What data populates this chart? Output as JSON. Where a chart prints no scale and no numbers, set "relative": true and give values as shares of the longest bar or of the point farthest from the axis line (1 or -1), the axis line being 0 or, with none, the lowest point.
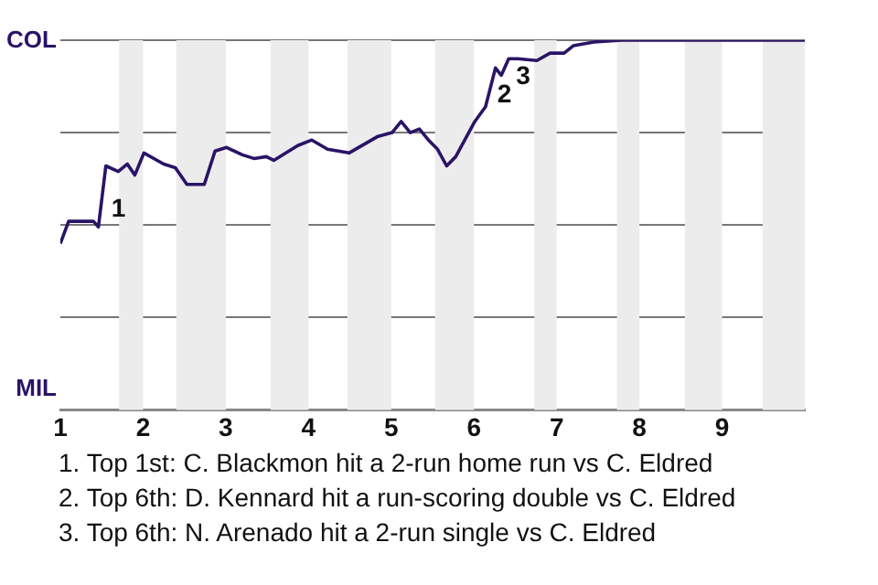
{
  "chart_data": {
    "type": "line",
    "relative": true,
    "x": [
      1,
      1.1,
      1.4,
      1.46,
      1.55,
      1.7,
      1.81,
      1.9,
      2.01,
      2.25,
      2.39,
      2.53,
      2.74,
      2.87,
      3.01,
      3.2,
      3.34,
      3.49,
      3.58,
      3.87,
      4.04,
      4.23,
      4.49,
      4.84,
      5.01,
      5.12,
      5.23,
      5.34,
      5.45,
      5.56,
      5.67,
      5.78,
      6.01,
      6.14,
      6.26,
      6.33,
      6.42,
      6.53,
      6.76,
      6.92,
      7.09,
      7.2,
      7.45,
      7.78,
      9.96,
      10
    ],
    "series": [
      {
        "color": "#2a1466",
        "values": [
          0.45,
          0.51,
          0.51,
          0.495,
          0.66,
          0.645,
          0.665,
          0.635,
          0.695,
          0.665,
          0.655,
          0.61,
          0.61,
          0.7,
          0.71,
          0.69,
          0.68,
          0.685,
          0.675,
          0.715,
          0.73,
          0.705,
          0.695,
          0.74,
          0.75,
          0.78,
          0.75,
          0.76,
          0.73,
          0.705,
          0.66,
          0.685,
          0.78,
          0.82,
          0.925,
          0.905,
          0.95,
          0.95,
          0.945,
          0.965,
          0.965,
          0.985,
          0.995,
          1,
          1,
          1
        ]
      }
    ],
    "xlim": [
      1,
      10
    ],
    "xticks": [
      1,
      2,
      3,
      4,
      5,
      6,
      7,
      8,
      9
    ],
    "grid": "y",
    "legend": false,
    "marker": "none",
    "line_style": "solid",
    "bands": [
      {
        "axis": "x",
        "from": 1.71,
        "to": 2,
        "color": "#ececec"
      },
      {
        "axis": "x",
        "from": 2.4,
        "to": 3,
        "color": "#ececec"
      },
      {
        "axis": "x",
        "from": 3.54,
        "to": 4,
        "color": "#ececec"
      },
      {
        "axis": "x",
        "from": 4.47,
        "to": 5,
        "color": "#ececec"
      },
      {
        "axis": "x",
        "from": 5.53,
        "to": 6,
        "color": "#ececec"
      },
      {
        "axis": "x",
        "from": 6.73,
        "to": 7,
        "color": "#ececec"
      },
      {
        "axis": "x",
        "from": 7.73,
        "to": 8,
        "color": "#ececec"
      },
      {
        "axis": "x",
        "from": 8.55,
        "to": 9,
        "color": "#ececec"
      },
      {
        "axis": "x",
        "from": 9.49,
        "to": 10,
        "color": "#ececec"
      }
    ],
    "annotations": [
      {
        "text": "1",
        "x": 1.55,
        "y": 0.66
      },
      {
        "text": "2",
        "x": 6.26,
        "y": 0.925
      },
      {
        "text": "3",
        "x": 6.42,
        "y": 0.95
      },
      "COL",
      "MIL",
      "1. Top 1st: C. Blackmon hit a 2-run home run vs C. Eldred",
      "2. Top 6th: D. Kennard hit a run-scoring double vs C. Eldred",
      "3. Top 6th: N. Arenado hit a 2-run single vs C. Eldred"
    ]
  }
}
